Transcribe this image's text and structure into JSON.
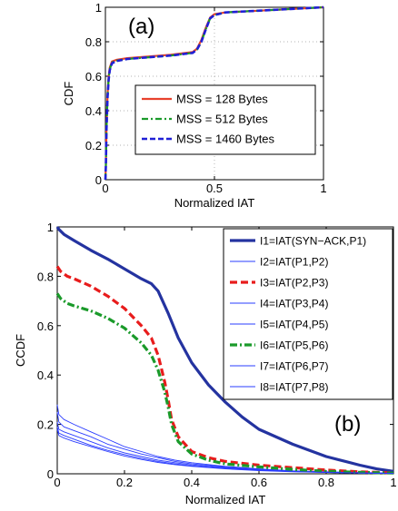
{
  "chart_data": [
    {
      "type": "line",
      "panel_label": "(a)",
      "xlabel": "Normalized IAT",
      "ylabel": "CDF",
      "xlim": [
        0,
        1
      ],
      "ylim": [
        0,
        1
      ],
      "xticks": [
        "0",
        "0.5",
        "1"
      ],
      "yticks": [
        "0",
        "0.2",
        "0.4",
        "0.6",
        "0.8",
        "1"
      ],
      "grid": true,
      "legend_position": "lower-right",
      "series": [
        {
          "name": "MSS = 128 Bytes",
          "color": "#e8412c",
          "style": "solid",
          "x": [
            0,
            0.002,
            0.005,
            0.01,
            0.015,
            0.02,
            0.03,
            0.05,
            0.1,
            0.2,
            0.3,
            0.4,
            0.42,
            0.44,
            0.46,
            0.48,
            0.5,
            0.55,
            0.7,
            0.85,
            1.0
          ],
          "y": [
            0,
            0.08,
            0.3,
            0.5,
            0.6,
            0.65,
            0.685,
            0.695,
            0.705,
            0.715,
            0.725,
            0.74,
            0.76,
            0.81,
            0.88,
            0.94,
            0.96,
            0.97,
            0.98,
            0.99,
            1.0
          ]
        },
        {
          "name": "MSS = 512 Bytes",
          "color": "#1a9a2a",
          "style": "dashdot",
          "x": [
            0,
            0.002,
            0.005,
            0.01,
            0.015,
            0.02,
            0.03,
            0.05,
            0.1,
            0.2,
            0.3,
            0.4,
            0.42,
            0.44,
            0.46,
            0.48,
            0.5,
            0.55,
            0.7,
            0.85,
            1.0
          ],
          "y": [
            0,
            0.08,
            0.29,
            0.49,
            0.59,
            0.64,
            0.68,
            0.69,
            0.7,
            0.71,
            0.72,
            0.735,
            0.755,
            0.8,
            0.87,
            0.935,
            0.955,
            0.97,
            0.98,
            0.99,
            1.0
          ]
        },
        {
          "name": "MSS = 1460 Bytes",
          "color": "#1f1fd6",
          "style": "dashed",
          "x": [
            0,
            0.002,
            0.005,
            0.01,
            0.015,
            0.02,
            0.03,
            0.05,
            0.1,
            0.2,
            0.3,
            0.4,
            0.42,
            0.44,
            0.46,
            0.48,
            0.5,
            0.55,
            0.7,
            0.85,
            1.0
          ],
          "y": [
            0,
            0.08,
            0.29,
            0.48,
            0.58,
            0.635,
            0.675,
            0.688,
            0.7,
            0.71,
            0.72,
            0.735,
            0.755,
            0.8,
            0.87,
            0.935,
            0.955,
            0.97,
            0.98,
            0.99,
            1.0
          ]
        }
      ]
    },
    {
      "type": "line",
      "panel_label": "(b)",
      "xlabel": "Normalized IAT",
      "ylabel": "CCDF",
      "xlim": [
        0,
        1
      ],
      "ylim": [
        0,
        1
      ],
      "xticks": [
        "0",
        "0.2",
        "0.4",
        "0.6",
        "0.8",
        "1"
      ],
      "yticks": [
        "0",
        "0.2",
        "0.4",
        "0.6",
        "0.8",
        "1"
      ],
      "grid": false,
      "legend_position": "top-right",
      "series": [
        {
          "name": "I1=IAT(SYN−ACK,P1)",
          "color": "#2433a0",
          "style": "thick-solid",
          "x": [
            0,
            0.005,
            0.02,
            0.05,
            0.1,
            0.15,
            0.2,
            0.25,
            0.28,
            0.3,
            0.33,
            0.36,
            0.4,
            0.45,
            0.5,
            0.55,
            0.6,
            0.7,
            0.8,
            0.9,
            0.95,
            1.0
          ],
          "y": [
            1.0,
            0.99,
            0.97,
            0.945,
            0.905,
            0.87,
            0.83,
            0.79,
            0.77,
            0.74,
            0.65,
            0.55,
            0.45,
            0.36,
            0.29,
            0.23,
            0.18,
            0.12,
            0.07,
            0.035,
            0.02,
            0.01
          ]
        },
        {
          "name": "I2=IAT(P1,P2)",
          "color": "#2a3cff",
          "style": "thin-solid",
          "x": [
            0,
            0.005,
            0.02,
            0.05,
            0.1,
            0.15,
            0.2,
            0.25,
            0.3,
            0.35,
            0.4,
            0.5,
            0.6,
            0.7,
            0.8,
            0.9,
            1.0
          ],
          "y": [
            0.28,
            0.24,
            0.22,
            0.2,
            0.17,
            0.14,
            0.11,
            0.09,
            0.07,
            0.055,
            0.045,
            0.03,
            0.02,
            0.012,
            0.008,
            0.005,
            0.003
          ]
        },
        {
          "name": "I3=IAT(P2,P3)",
          "color": "#e81c1c",
          "style": "thick-dashed",
          "x": [
            0,
            0.01,
            0.03,
            0.05,
            0.1,
            0.15,
            0.2,
            0.25,
            0.28,
            0.3,
            0.32,
            0.33,
            0.34,
            0.36,
            0.4,
            0.45,
            0.5,
            0.6,
            0.7,
            0.8,
            0.9,
            1.0
          ],
          "y": [
            0.84,
            0.82,
            0.8,
            0.79,
            0.76,
            0.72,
            0.67,
            0.6,
            0.55,
            0.48,
            0.37,
            0.3,
            0.22,
            0.15,
            0.09,
            0.065,
            0.05,
            0.035,
            0.025,
            0.015,
            0.008,
            0.004
          ]
        },
        {
          "name": "I4=IAT(P3,P4)",
          "color": "#2a3cff",
          "style": "thin-solid",
          "x": [
            0,
            0.005,
            0.02,
            0.05,
            0.1,
            0.15,
            0.2,
            0.25,
            0.3,
            0.35,
            0.4,
            0.5,
            0.6,
            0.7,
            0.8,
            0.9,
            1.0
          ],
          "y": [
            0.25,
            0.21,
            0.19,
            0.175,
            0.15,
            0.12,
            0.1,
            0.08,
            0.065,
            0.05,
            0.04,
            0.028,
            0.018,
            0.011,
            0.007,
            0.004,
            0.002
          ]
        },
        {
          "name": "I5=IAT(P4,P5)",
          "color": "#2a3cff",
          "style": "thin-solid",
          "x": [
            0,
            0.005,
            0.02,
            0.05,
            0.1,
            0.15,
            0.2,
            0.25,
            0.3,
            0.35,
            0.4,
            0.5,
            0.6,
            0.7,
            0.8,
            0.9,
            1.0
          ],
          "y": [
            0.21,
            0.18,
            0.17,
            0.155,
            0.13,
            0.105,
            0.085,
            0.07,
            0.055,
            0.045,
            0.036,
            0.025,
            0.016,
            0.01,
            0.006,
            0.004,
            0.002
          ]
        },
        {
          "name": "I6=IAT(P5,P6)",
          "color": "#1a9a2a",
          "style": "thick-dashdot",
          "x": [
            0,
            0.01,
            0.03,
            0.05,
            0.1,
            0.15,
            0.2,
            0.25,
            0.28,
            0.3,
            0.32,
            0.33,
            0.34,
            0.36,
            0.4,
            0.45,
            0.5,
            0.6,
            0.7,
            0.8,
            0.9,
            1.0
          ],
          "y": [
            0.73,
            0.71,
            0.69,
            0.68,
            0.66,
            0.63,
            0.59,
            0.53,
            0.48,
            0.42,
            0.33,
            0.27,
            0.2,
            0.13,
            0.08,
            0.055,
            0.04,
            0.028,
            0.018,
            0.01,
            0.006,
            0.003
          ]
        },
        {
          "name": "I7=IAT(P6,P7)",
          "color": "#2a3cff",
          "style": "thin-solid",
          "x": [
            0,
            0.005,
            0.02,
            0.05,
            0.1,
            0.15,
            0.2,
            0.25,
            0.3,
            0.35,
            0.4,
            0.5,
            0.6,
            0.7,
            0.8,
            0.9,
            1.0
          ],
          "y": [
            0.19,
            0.165,
            0.155,
            0.14,
            0.115,
            0.095,
            0.078,
            0.063,
            0.05,
            0.04,
            0.032,
            0.022,
            0.014,
            0.009,
            0.006,
            0.003,
            0.002
          ]
        },
        {
          "name": "I8=IAT(P7,P8)",
          "color": "#2a3cff",
          "style": "thin-solid",
          "x": [
            0,
            0.005,
            0.02,
            0.05,
            0.1,
            0.15,
            0.2,
            0.25,
            0.3,
            0.35,
            0.4,
            0.5,
            0.6,
            0.7,
            0.8,
            0.9,
            1.0
          ],
          "y": [
            0.18,
            0.155,
            0.145,
            0.13,
            0.11,
            0.09,
            0.072,
            0.058,
            0.046,
            0.037,
            0.03,
            0.02,
            0.013,
            0.008,
            0.005,
            0.003,
            0.001
          ]
        }
      ]
    }
  ]
}
